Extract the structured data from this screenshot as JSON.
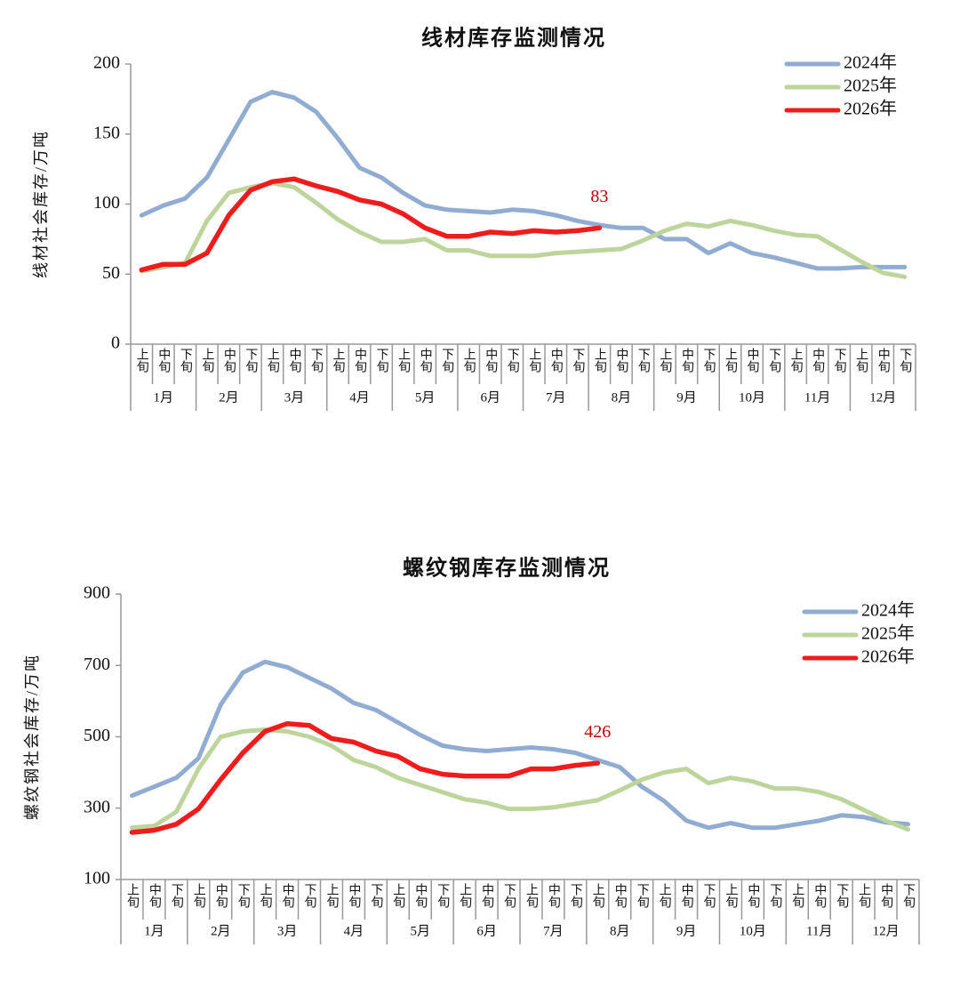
{
  "chart_data": [
    {
      "type": "line",
      "title": "线材库存监测情况",
      "y_label": "线材社会库存/万吨",
      "categories": [
        "上旬",
        "中旬",
        "下旬",
        "上旬",
        "中旬",
        "下旬",
        "上旬",
        "中旬",
        "下旬",
        "上旬",
        "中旬",
        "下旬",
        "上旬",
        "中旬",
        "下旬",
        "上旬",
        "中旬",
        "下旬",
        "上旬",
        "中旬",
        "下旬",
        "上旬",
        "中旬",
        "下旬",
        "上旬",
        "中旬",
        "下旬",
        "上旬",
        "中旬",
        "下旬",
        "上旬",
        "中旬",
        "下旬",
        "上旬",
        "中旬",
        "下旬"
      ],
      "months": [
        "1月",
        "2月",
        "3月",
        "4月",
        "5月",
        "6月",
        "7月",
        "8月",
        "9月",
        "10月",
        "11月",
        "12月"
      ],
      "ylim": [
        0,
        200
      ],
      "yticks": [
        0,
        50,
        100,
        150,
        200
      ],
      "grid": false,
      "legend": "upper right",
      "series": [
        {
          "name": "2024年",
          "color": "#91acd2",
          "values": [
            92,
            99,
            104,
            119,
            146,
            173,
            180,
            176,
            166,
            147,
            126,
            119,
            108,
            99,
            96,
            95,
            94,
            96,
            95,
            92,
            88,
            85,
            83,
            83,
            75,
            75,
            65,
            72,
            65,
            62,
            58,
            54,
            54,
            55,
            55,
            55
          ]
        },
        {
          "name": "2025年",
          "color": "#bdd59a",
          "values": [
            52,
            55,
            58,
            88,
            108,
            112,
            115,
            112,
            101,
            89,
            80,
            73,
            73,
            75,
            67,
            67,
            63,
            63,
            63,
            65,
            66,
            67,
            68,
            74,
            81,
            86,
            84,
            88,
            85,
            81,
            78,
            77,
            68,
            59,
            51,
            48
          ]
        },
        {
          "name": "2026年",
          "color": "#ee1c1c",
          "values": [
            53,
            57,
            57,
            65,
            92,
            110,
            116,
            118,
            113,
            109,
            103,
            100,
            93,
            83,
            77,
            77,
            80,
            79,
            81,
            80,
            81,
            83,
            null,
            null,
            null,
            null,
            null,
            null,
            null,
            null,
            null,
            null,
            null,
            null,
            null,
            null
          ],
          "value_labels": [
            null,
            null,
            null,
            null,
            null,
            null,
            null,
            null,
            null,
            null,
            null,
            null,
            null,
            null,
            null,
            null,
            null,
            null,
            null,
            null,
            null,
            "83",
            null,
            null,
            null,
            null,
            null,
            null,
            null,
            null,
            null,
            null,
            null,
            null,
            null,
            null
          ]
        }
      ]
    },
    {
      "type": "line",
      "title": "螺纹钢库存监测情况",
      "y_label": "螺纹钢社会库存/万吨",
      "categories": [
        "上旬",
        "中旬",
        "下旬",
        "上旬",
        "中旬",
        "下旬",
        "上旬",
        "中旬",
        "下旬",
        "上旬",
        "中旬",
        "下旬",
        "上旬",
        "中旬",
        "下旬",
        "上旬",
        "中旬",
        "下旬",
        "上旬",
        "中旬",
        "下旬",
        "上旬",
        "中旬",
        "下旬",
        "上旬",
        "中旬",
        "下旬",
        "上旬",
        "中旬",
        "下旬",
        "上旬",
        "中旬",
        "下旬",
        "上旬",
        "中旬",
        "下旬"
      ],
      "months": [
        "1月",
        "2月",
        "3月",
        "4月",
        "5月",
        "6月",
        "7月",
        "8月",
        "9月",
        "10月",
        "11月",
        "12月"
      ],
      "ylim": [
        100,
        900
      ],
      "yticks": [
        100,
        300,
        500,
        700,
        900
      ],
      "grid": false,
      "legend": "upper right",
      "series": [
        {
          "name": "2024年",
          "color": "#91acd2",
          "values": [
            335,
            360,
            385,
            440,
            590,
            680,
            710,
            695,
            665,
            635,
            595,
            575,
            540,
            505,
            475,
            465,
            460,
            465,
            470,
            465,
            455,
            435,
            415,
            360,
            320,
            265,
            245,
            258,
            245,
            245,
            255,
            265,
            280,
            275,
            260,
            255
          ]
        },
        {
          "name": "2025年",
          "color": "#bdd59a",
          "values": [
            245,
            250,
            290,
            410,
            500,
            515,
            520,
            515,
            500,
            475,
            435,
            415,
            385,
            365,
            345,
            325,
            315,
            298,
            298,
            302,
            312,
            322,
            350,
            380,
            400,
            410,
            370,
            385,
            375,
            355,
            355,
            345,
            325,
            295,
            265,
            240
          ]
        },
        {
          "name": "2026年",
          "color": "#ee1c1c",
          "values": [
            232,
            238,
            255,
            298,
            380,
            455,
            515,
            537,
            532,
            495,
            485,
            460,
            445,
            410,
            395,
            390,
            390,
            390,
            410,
            410,
            420,
            426,
            null,
            null,
            null,
            null,
            null,
            null,
            null,
            null,
            null,
            null,
            null,
            null,
            null,
            null
          ],
          "value_labels": [
            null,
            null,
            null,
            null,
            null,
            null,
            null,
            null,
            null,
            null,
            null,
            null,
            null,
            null,
            null,
            null,
            null,
            null,
            null,
            null,
            null,
            "426",
            null,
            null,
            null,
            null,
            null,
            null,
            null,
            null,
            null,
            null,
            null,
            null,
            null,
            null
          ]
        }
      ]
    }
  ]
}
